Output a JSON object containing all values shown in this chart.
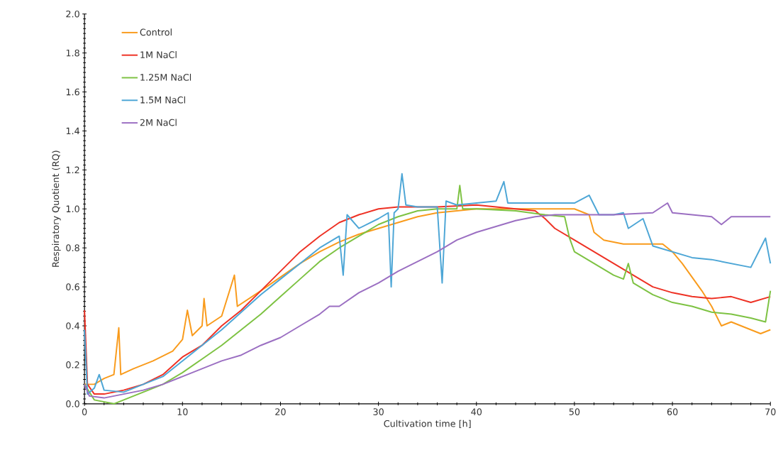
{
  "chart_data": {
    "type": "line",
    "xlabel": "Cultivation time [h]",
    "ylabel": "Respiratory Quotient (RQ)",
    "xlim": [
      0,
      70
    ],
    "ylim": [
      0,
      2.0
    ],
    "xticks": [
      0,
      10,
      20,
      30,
      40,
      50,
      60,
      70
    ],
    "yticks": [
      {
        "value": 0,
        "label": "0.0"
      },
      {
        "value": 0.2,
        "label": "0.2"
      },
      {
        "value": 0.4,
        "label": "0.4"
      },
      {
        "value": 0.6,
        "label": "0.6"
      },
      {
        "value": 0.8,
        "label": "0.8"
      },
      {
        "value": 1.0,
        "label": "1.0"
      },
      {
        "value": 1.2,
        "label": "1.2"
      },
      {
        "value": 1.4,
        "label": "1.4"
      },
      {
        "value": 1.6,
        "label": "1.6"
      },
      {
        "value": 1.8,
        "label": "1.8"
      },
      {
        "value": 2.0,
        "label": "2.0"
      }
    ],
    "grid": false,
    "legend": "top left",
    "marker": "none",
    "line_style": "solid",
    "series": [
      {
        "name": "Control",
        "color": "#f99b1c",
        "x": [
          0,
          1,
          2,
          3,
          3.5,
          3.7,
          5,
          7,
          9,
          10,
          10.5,
          11,
          12,
          12.2,
          12.5,
          14,
          15.3,
          15.6,
          18,
          20,
          22,
          24,
          26,
          28,
          30,
          32,
          34,
          36,
          38,
          40,
          44,
          48,
          50,
          51.5,
          52,
          53,
          55,
          57,
          59,
          60,
          61,
          62,
          63,
          64,
          65,
          66,
          67,
          68,
          69,
          70
        ],
        "values": [
          0.1,
          0.1,
          0.13,
          0.15,
          0.39,
          0.15,
          0.18,
          0.22,
          0.27,
          0.33,
          0.48,
          0.35,
          0.4,
          0.54,
          0.4,
          0.45,
          0.66,
          0.5,
          0.58,
          0.65,
          0.72,
          0.78,
          0.83,
          0.87,
          0.9,
          0.93,
          0.96,
          0.98,
          0.99,
          1.0,
          1.0,
          1.0,
          1.0,
          0.97,
          0.88,
          0.84,
          0.82,
          0.82,
          0.82,
          0.78,
          0.72,
          0.65,
          0.58,
          0.5,
          0.4,
          0.42,
          0.4,
          0.38,
          0.36,
          0.38
        ]
      },
      {
        "name": "1M NaCl",
        "color": "#ee3124",
        "x": [
          0,
          0.3,
          1,
          2,
          4,
          6,
          8,
          10,
          12,
          14,
          16,
          18,
          20,
          22,
          24,
          26,
          28,
          30,
          32,
          36,
          40,
          44,
          46,
          47,
          48,
          50,
          52,
          54,
          56,
          58,
          60,
          62,
          64,
          66,
          68,
          70
        ],
        "values": [
          0.48,
          0.1,
          0.05,
          0.05,
          0.07,
          0.1,
          0.15,
          0.24,
          0.3,
          0.4,
          0.48,
          0.58,
          0.68,
          0.78,
          0.86,
          0.93,
          0.97,
          1.0,
          1.01,
          1.01,
          1.02,
          1.0,
          0.99,
          0.95,
          0.9,
          0.84,
          0.78,
          0.72,
          0.66,
          0.6,
          0.57,
          0.55,
          0.54,
          0.55,
          0.52,
          0.55
        ]
      },
      {
        "name": "1.25M NaCl",
        "color": "#7dc242",
        "x": [
          0,
          1,
          3,
          4,
          6,
          8,
          10,
          12,
          14,
          16,
          18,
          20,
          22,
          24,
          26,
          28,
          30,
          32,
          34,
          36,
          38,
          38.3,
          38.6,
          40,
          44,
          47,
          49,
          49.5,
          50,
          52,
          54,
          55,
          55.5,
          56,
          58,
          60,
          62,
          64,
          66,
          68,
          69.5,
          70
        ],
        "values": [
          0.1,
          0.02,
          0,
          0.02,
          0.06,
          0.1,
          0.16,
          0.23,
          0.3,
          0.38,
          0.46,
          0.55,
          0.64,
          0.73,
          0.8,
          0.86,
          0.92,
          0.96,
          0.99,
          1.0,
          1.0,
          1.12,
          1.0,
          1.0,
          0.99,
          0.97,
          0.96,
          0.85,
          0.78,
          0.72,
          0.66,
          0.64,
          0.72,
          0.62,
          0.56,
          0.52,
          0.5,
          0.47,
          0.46,
          0.44,
          0.42,
          0.58
        ]
      },
      {
        "name": "1.5M NaCl",
        "color": "#4da6d6",
        "x": [
          0,
          0.3,
          1,
          1.5,
          2,
          4,
          6,
          8,
          10,
          12,
          14,
          16,
          18,
          20,
          22,
          24,
          26,
          26.4,
          26.8,
          28,
          30,
          31,
          31.3,
          31.6,
          32,
          32.4,
          32.8,
          34,
          36,
          36.5,
          36.9,
          38,
          40,
          42,
          42.8,
          43.2,
          46,
          50,
          51.5,
          52.5,
          54,
          55,
          55.5,
          57,
          58,
          60,
          62,
          64,
          66,
          68,
          69.5,
          70
        ],
        "values": [
          0.38,
          0.05,
          0.08,
          0.15,
          0.07,
          0.06,
          0.1,
          0.14,
          0.22,
          0.3,
          0.38,
          0.47,
          0.56,
          0.64,
          0.72,
          0.8,
          0.86,
          0.66,
          0.97,
          0.9,
          0.95,
          0.98,
          0.6,
          0.98,
          1.0,
          1.18,
          1.02,
          1.01,
          1.01,
          0.62,
          1.04,
          1.02,
          1.03,
          1.04,
          1.14,
          1.03,
          1.03,
          1.03,
          1.07,
          0.97,
          0.97,
          0.98,
          0.9,
          0.95,
          0.81,
          0.78,
          0.75,
          0.74,
          0.72,
          0.7,
          0.85,
          0.72
        ]
      },
      {
        "name": "2M NaCl",
        "color": "#9b6fc2",
        "x": [
          0,
          0.5,
          2,
          4,
          6,
          8,
          10,
          12,
          14,
          16,
          18,
          20,
          22,
          24,
          25,
          26,
          28,
          30,
          32,
          34,
          36,
          38,
          40,
          42,
          44,
          46,
          48,
          50,
          54,
          58,
          59.5,
          60,
          62,
          64,
          65,
          66,
          68,
          70
        ],
        "values": [
          0.1,
          0.04,
          0.03,
          0.05,
          0.07,
          0.1,
          0.14,
          0.18,
          0.22,
          0.25,
          0.3,
          0.34,
          0.4,
          0.46,
          0.5,
          0.5,
          0.57,
          0.62,
          0.68,
          0.73,
          0.78,
          0.84,
          0.88,
          0.91,
          0.94,
          0.96,
          0.97,
          0.97,
          0.97,
          0.98,
          1.03,
          0.98,
          0.97,
          0.96,
          0.92,
          0.96,
          0.96,
          0.96
        ]
      }
    ]
  }
}
